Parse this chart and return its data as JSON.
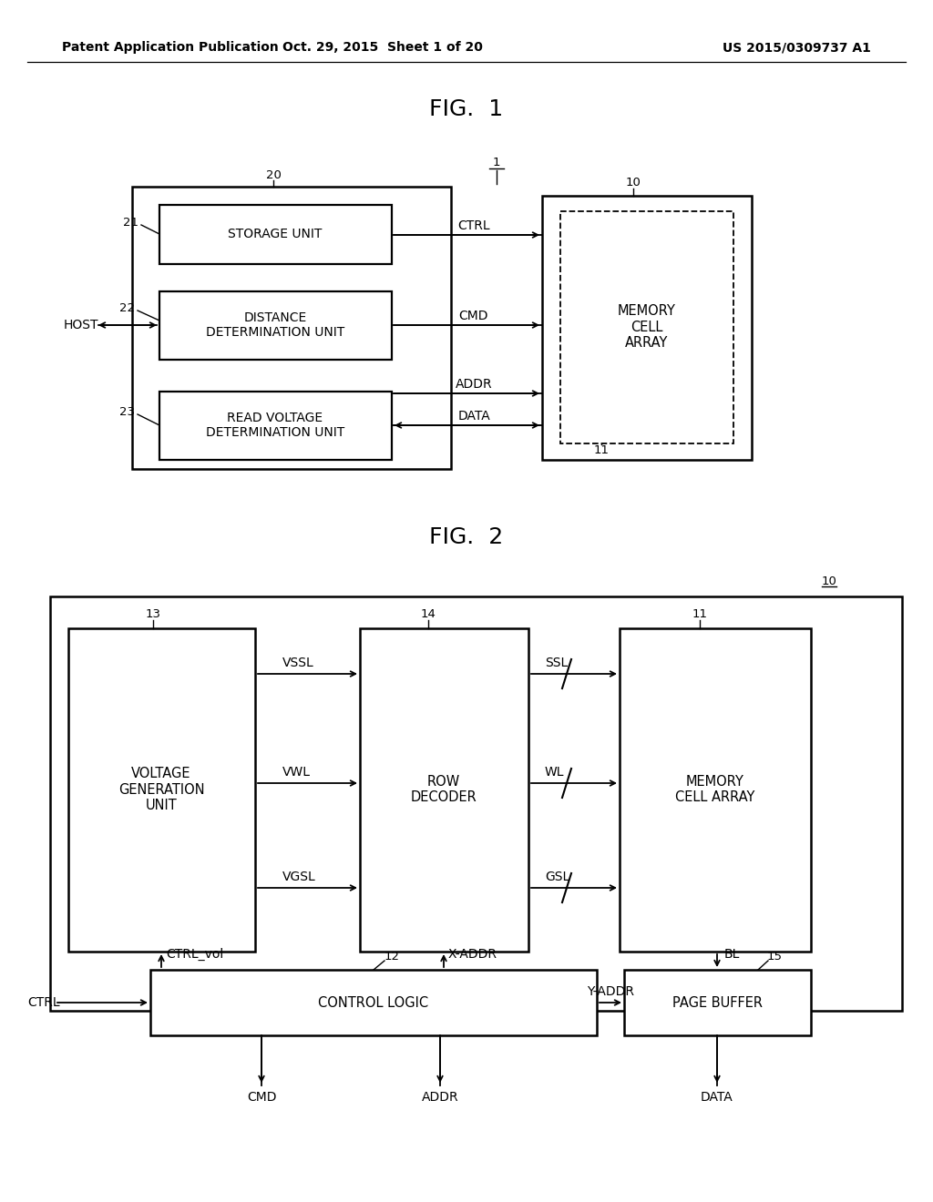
{
  "bg_color": "#ffffff",
  "header_left": "Patent Application Publication",
  "header_mid": "Oct. 29, 2015  Sheet 1 of 20",
  "header_right": "US 2015/0309737 A1",
  "fig1_title": "FIG.  1",
  "fig2_title": "FIG.  2"
}
